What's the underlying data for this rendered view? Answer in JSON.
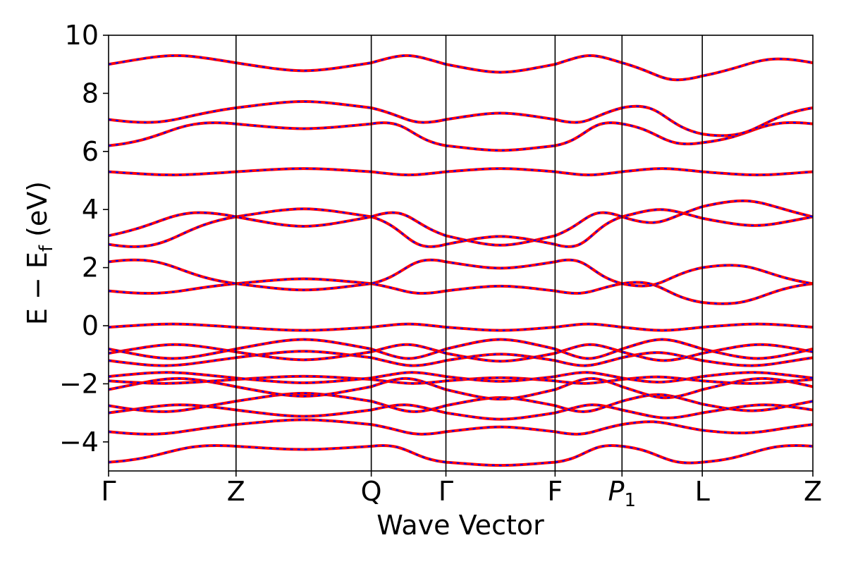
{
  "chart_data": {
    "type": "line",
    "title": "",
    "xlabel": "Wave Vector",
    "ylabel": "E − E",
    "ylabel_subscript": "f",
    "ylabel_unit": " (eV)",
    "ylim": [
      -5,
      10
    ],
    "yticks": [
      -4,
      -2,
      0,
      2,
      4,
      6,
      8,
      10
    ],
    "ytick_labels": [
      "−4",
      "−2",
      "0",
      "2",
      "4",
      "6",
      "8",
      "10"
    ],
    "xlim": [
      0,
      1
    ],
    "kpoints": [
      {
        "label": "Γ",
        "pos": 0.0
      },
      {
        "label": "Z",
        "pos": 0.181
      },
      {
        "label": "Q",
        "pos": 0.373
      },
      {
        "label": "Γ",
        "pos": 0.479
      },
      {
        "label": "F",
        "pos": 0.634
      },
      {
        "label": "P",
        "label_sub": "1",
        "pos": 0.729
      },
      {
        "label": "L",
        "pos": 0.843
      },
      {
        "label": "Z",
        "pos": 1.0
      }
    ],
    "grid": false,
    "series_colors": {
      "solid": "#ff0000",
      "dashed": "#0000ff"
    },
    "band_anchor_columns": [
      "Γ",
      "Z",
      "Q",
      "Γ",
      "F",
      "P1",
      "L",
      "Z"
    ],
    "bands": [
      [
        -4.7,
        -4.15,
        -4.15,
        -4.7,
        -4.7,
        -4.15,
        -4.7,
        -4.15
      ],
      [
        -3.65,
        -3.4,
        -3.4,
        -3.65,
        -3.65,
        -3.4,
        -3.6,
        -3.4
      ],
      [
        -3.0,
        -2.9,
        -2.9,
        -3.0,
        -3.0,
        -2.9,
        -3.0,
        -2.9
      ],
      [
        -2.75,
        -2.6,
        -2.6,
        -2.75,
        -2.75,
        -2.6,
        -2.7,
        -2.6
      ],
      [
        -2.2,
        -2.1,
        -2.1,
        -2.2,
        -2.2,
        -2.1,
        -2.2,
        -2.1
      ],
      [
        -1.9,
        -1.85,
        -1.85,
        -1.9,
        -1.9,
        -1.85,
        -1.9,
        -1.85
      ],
      [
        -1.75,
        -1.8,
        -1.8,
        -1.75,
        -1.75,
        -1.8,
        -1.75,
        -1.8
      ],
      [
        -1.2,
        -1.1,
        -1.1,
        -1.2,
        -1.2,
        -1.1,
        -1.2,
        -1.1
      ],
      [
        -0.95,
        -0.9,
        -0.9,
        -0.95,
        -0.95,
        -0.9,
        -0.95,
        -0.9
      ],
      [
        -0.8,
        -0.8,
        -0.8,
        -0.8,
        -0.8,
        -0.8,
        -0.8,
        -0.8
      ],
      [
        -0.05,
        -0.05,
        -0.05,
        -0.05,
        -0.05,
        -0.05,
        -0.05,
        -0.05
      ],
      [
        1.2,
        1.45,
        1.45,
        1.2,
        1.2,
        1.45,
        0.8,
        1.45
      ],
      [
        2.2,
        1.45,
        1.45,
        2.2,
        2.2,
        1.45,
        2.0,
        1.45
      ],
      [
        2.8,
        3.75,
        3.75,
        2.8,
        2.8,
        3.75,
        3.7,
        3.75
      ],
      [
        3.1,
        3.75,
        3.75,
        3.1,
        3.1,
        3.75,
        4.1,
        3.75
      ],
      [
        5.3,
        5.3,
        5.3,
        5.3,
        5.3,
        5.3,
        5.3,
        5.3
      ],
      [
        6.2,
        6.95,
        6.95,
        6.2,
        6.2,
        6.95,
        6.3,
        6.95
      ],
      [
        7.1,
        7.5,
        7.5,
        7.1,
        7.1,
        7.5,
        6.6,
        7.5
      ],
      [
        9.0,
        9.05,
        9.05,
        9.0,
        9.0,
        9.05,
        8.6,
        9.05
      ]
    ]
  }
}
